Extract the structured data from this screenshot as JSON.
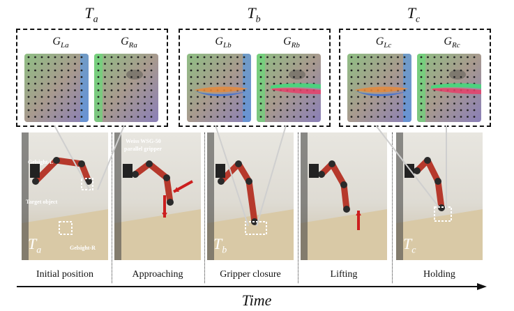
{
  "time_labels": [
    {
      "main": "T",
      "sub": "a"
    },
    {
      "main": "T",
      "sub": "b"
    },
    {
      "main": "T",
      "sub": "c"
    }
  ],
  "gelsight_labels": [
    {
      "main": "G",
      "sub": "La"
    },
    {
      "main": "G",
      "sub": "Ra"
    },
    {
      "main": "G",
      "sub": "Lb"
    },
    {
      "main": "G",
      "sub": "Rb"
    },
    {
      "main": "G",
      "sub": "Lc"
    },
    {
      "main": "G",
      "sub": "Rc"
    }
  ],
  "photo_annotations": {
    "gelsight_l": "Gelsight-L",
    "gelsight_r": "Gelsight-R",
    "target_object": "Target object",
    "gripper": "Weiss WSG-50",
    "gripper_sub": "parallel gripper",
    "photo_ta": {
      "main": "T",
      "sub": "a"
    },
    "photo_tb": {
      "main": "T",
      "sub": "b"
    },
    "photo_tc": {
      "main": "T",
      "sub": "c"
    }
  },
  "captions": [
    "Initial position",
    "Approaching",
    "Gripper closure",
    "Lifting",
    "Holding"
  ],
  "axis_label": "Time",
  "colors": {
    "arrow_red": "#cc1f1f",
    "robot_red": "#b6392c",
    "dashed_box": "#111111"
  }
}
